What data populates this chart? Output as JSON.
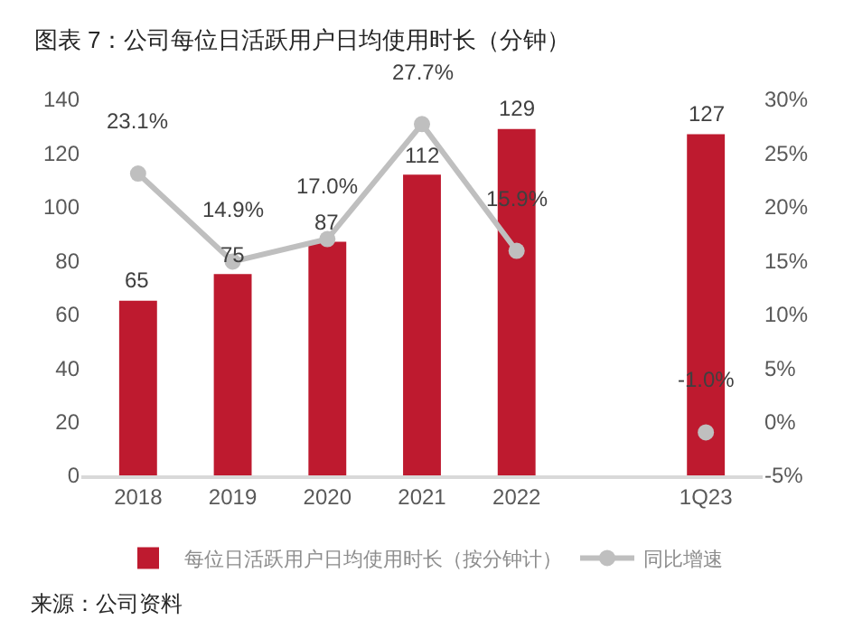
{
  "chart_data": {
    "type": "bar",
    "title": "图表 7：公司每位日活跃用户日均使用时长（分钟）",
    "categories": [
      "2018",
      "2019",
      "2020",
      "2021",
      "2022",
      null,
      "1Q23"
    ],
    "series": [
      {
        "name": "每位日活跃用户日均使用时长（按分钟计）",
        "color": "#be1a2f",
        "values": [
          65,
          75,
          87,
          112,
          129,
          null,
          127
        ],
        "value_labels": [
          "65",
          "75",
          "87",
          "112",
          "129",
          null,
          "127"
        ]
      },
      {
        "name": "同比增速",
        "type": "line",
        "axis": "y2",
        "color": "#bfbfbf",
        "marker": "circle",
        "values": [
          23.1,
          14.9,
          17.0,
          27.7,
          15.9,
          null,
          -1.0
        ],
        "value_labels": [
          "23.1%",
          "14.9%",
          "17.0%",
          "27.7%",
          "15.9%",
          null,
          "-1.0%"
        ]
      }
    ],
    "ylim": [
      0,
      140
    ],
    "yticks": [
      0,
      20,
      40,
      60,
      80,
      100,
      120,
      140
    ],
    "y2lim": [
      -5,
      30
    ],
    "y2ticks": [
      {
        "value": -5,
        "label": "-5%"
      },
      {
        "value": 0,
        "label": "0%"
      },
      {
        "value": 5,
        "label": "5%"
      },
      {
        "value": 10,
        "label": "10%"
      },
      {
        "value": 15,
        "label": "15%"
      },
      {
        "value": 20,
        "label": "20%"
      },
      {
        "value": 25,
        "label": "25%"
      },
      {
        "value": 30,
        "label": "30%"
      }
    ],
    "grid": false,
    "legend": "bottom",
    "annotations": [
      "来源：公司资料"
    ]
  }
}
